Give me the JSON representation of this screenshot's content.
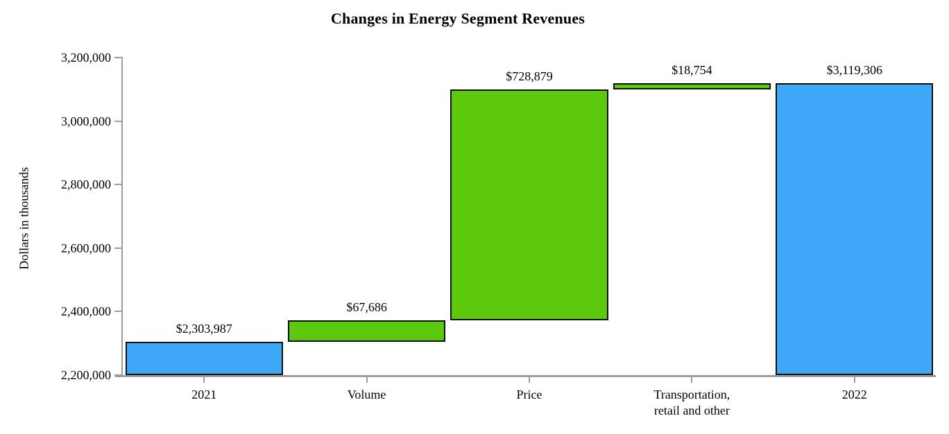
{
  "chart_data": {
    "type": "bar",
    "subtype": "waterfall",
    "title": "Changes in Energy Segment Revenues",
    "xlabel": "",
    "ylabel": "Dollars in thousands",
    "ylim": [
      2200000,
      3200000
    ],
    "ytick_step": 200000,
    "ytick_labels": [
      "3,200,000",
      "3,000,000",
      "2,800,000",
      "2,600,000",
      "2,400,000",
      "2,200,000"
    ],
    "grid": false,
    "legend": "none",
    "categories": [
      "2021",
      "Volume",
      "Price",
      "Transportation,\nretail and other",
      "2022"
    ],
    "bars": [
      {
        "category": "2021",
        "label": "$2,303,987",
        "value": 2303987,
        "start": 2200000,
        "end": 2303987,
        "color": "blue"
      },
      {
        "category": "Volume",
        "label": "$67,686",
        "value": 67686,
        "start": 2303987,
        "end": 2371673,
        "color": "green"
      },
      {
        "category": "Price",
        "label": "$728,879",
        "value": 728879,
        "start": 2371673,
        "end": 3100552,
        "color": "green"
      },
      {
        "category": "Transportation,\nretail and other",
        "label": "$18,754",
        "value": 18754,
        "start": 3100552,
        "end": 3119306,
        "color": "green"
      },
      {
        "category": "2022",
        "label": "$3,119,306",
        "value": 3119306,
        "start": 2200000,
        "end": 3119306,
        "color": "blue"
      }
    ],
    "colors": {
      "blue": "#3FA9F7",
      "green": "#5CC90D",
      "axis": "#9C9C9C",
      "bar_border": "#0D0D0D",
      "text": "#000000",
      "background": "#FFFFFF"
    }
  }
}
